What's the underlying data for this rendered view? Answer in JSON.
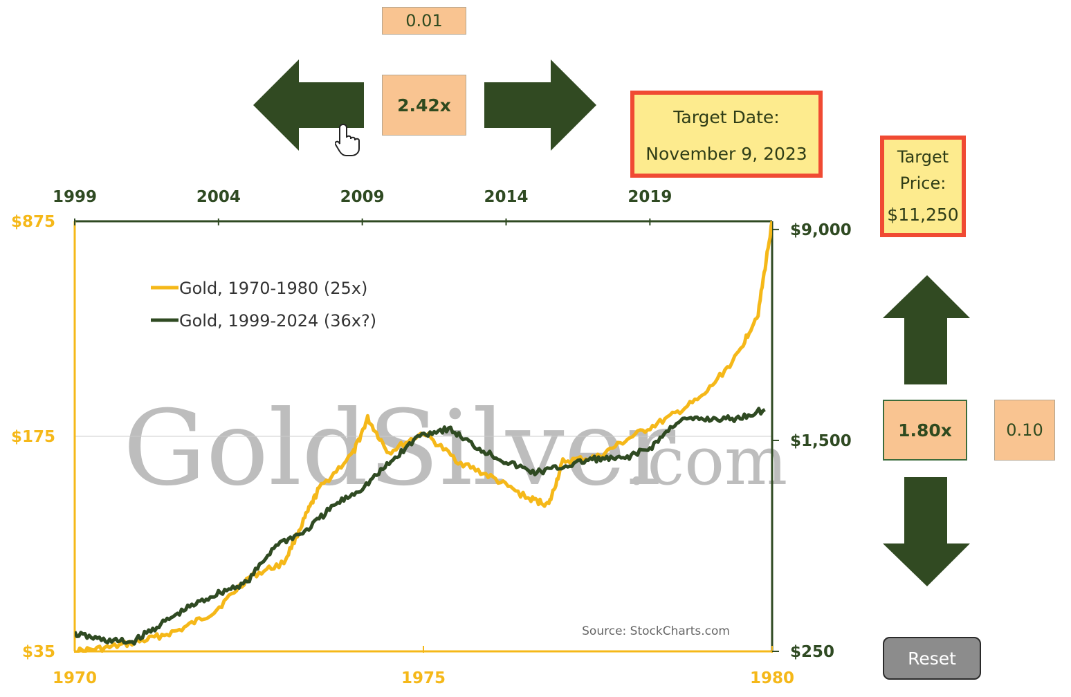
{
  "controls": {
    "date_step": "0.01",
    "date_multiplier": "2.42x",
    "price_multiplier": "1.80x",
    "price_step": "0.10",
    "reset_label": "Reset"
  },
  "target_date": {
    "label": "Target Date:",
    "value": "November 9, 2023"
  },
  "target_price": {
    "label_line1": "Target",
    "label_line2": "Price:",
    "value": "$11,250"
  },
  "colors": {
    "gold": "#f5b819",
    "green": "#2f4a22",
    "accent_red": "#f04a33",
    "peach": "#f9c491",
    "yellow_box": "#fdeb8e"
  },
  "chart_data": {
    "type": "line",
    "title": "",
    "source": "Source: StockCharts.com",
    "watermark": {
      "main": "GoldSilver",
      "suffix": ".com"
    },
    "x_top": {
      "ticks": [
        "1999",
        "2004",
        "2009",
        "2014",
        "2019"
      ]
    },
    "x_bottom": {
      "ticks": [
        "1970",
        "1975",
        "1980"
      ],
      "range": [
        1970,
        1980
      ]
    },
    "y_left": {
      "scale": "log",
      "ticks": [
        "$875",
        "$175",
        "$35"
      ],
      "range": [
        35,
        875
      ]
    },
    "y_right": {
      "scale": "log",
      "ticks": [
        "$9,000",
        "$1,500",
        "$250"
      ],
      "range": [
        250,
        9000
      ]
    },
    "legend_position": "top-left",
    "series": [
      {
        "name": "Gold, 1970-1980 (25x)",
        "color": "#f5b819",
        "axis": "bottom-left",
        "x": [
          1970,
          1970.5,
          1971,
          1971.5,
          1972,
          1972.5,
          1973,
          1973.3,
          1973.5,
          1974,
          1974.2,
          1974.5,
          1975,
          1975.5,
          1976,
          1976.5,
          1976.8,
          1977,
          1977.5,
          1978,
          1978.5,
          1979,
          1979.5,
          1979.8,
          1980
        ],
        "y": [
          35,
          36,
          38,
          41,
          47,
          61,
          68,
          95,
          118,
          155,
          200,
          155,
          180,
          145,
          128,
          110,
          105,
          145,
          150,
          175,
          200,
          235,
          320,
          440,
          875
        ]
      },
      {
        "name": "Gold, 1999-2024 (36x?)",
        "color": "#2f4a22",
        "axis": "top-right",
        "x": [
          1999,
          2000,
          2001,
          2002,
          2003,
          2004,
          2005,
          2006,
          2007,
          2008,
          2009,
          2010,
          2011,
          2012,
          2013,
          2014,
          2015,
          2016,
          2017,
          2018,
          2019,
          2020,
          2021,
          2022,
          2023
        ],
        "y": [
          290,
          275,
          270,
          315,
          365,
          410,
          450,
          620,
          690,
          860,
          1000,
          1250,
          1570,
          1660,
          1410,
          1250,
          1140,
          1200,
          1280,
          1280,
          1400,
          1780,
          1800,
          1800,
          1950
        ]
      }
    ]
  }
}
